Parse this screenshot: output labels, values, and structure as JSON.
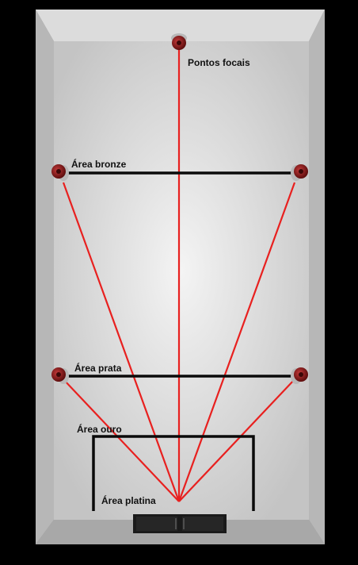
{
  "colors": {
    "background": "#000000",
    "wall": "#7a7a7a",
    "floor_center": "#f2f2f2",
    "floor_edge": "#c9c9c9",
    "sight_line": "#e8201f",
    "area_line": "#0a0a0a",
    "focal_point": "#8b1a1a"
  },
  "labels": {
    "focal_points": "Pontos focais",
    "area_bronze": "Área bronze",
    "area_prata": "Área prata",
    "area_ouro": "Área ouro",
    "area_platina": "Área platina"
  },
  "icons": {
    "focal_point": "speaker-icon",
    "entrance": "door-icon"
  }
}
